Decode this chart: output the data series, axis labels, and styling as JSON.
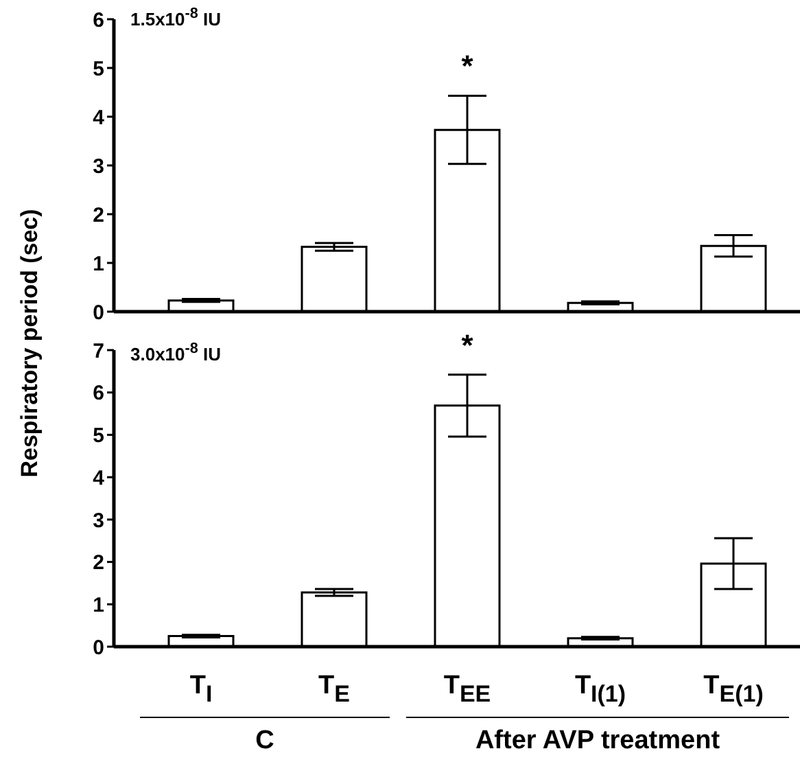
{
  "chart_data": [
    {
      "type": "bar",
      "ylabel": "Respiratory period (sec)",
      "categories": [
        null,
        null,
        null,
        null,
        null
      ],
      "series": [
        {
          "color": "#ffffff",
          "values": [
            0.23,
            1.33,
            3.73,
            0.18,
            1.35
          ],
          "errors": [
            0.03,
            0.08,
            0.7,
            0.03,
            0.22
          ]
        }
      ],
      "ylim": [
        0,
        6
      ],
      "yticks": [
        0,
        1,
        2,
        3,
        4,
        5,
        6
      ],
      "tick_labels": "y",
      "annotations": [
        "1.5x10$^{-8}$ IU",
        "*"
      ]
    },
    {
      "type": "bar",
      "categories": [
        "T$_{I}$",
        "T$_{E}$",
        "T$_{EE}$",
        "T$_{I(1)}$",
        "T$_{E(1)}$"
      ],
      "series": [
        {
          "color": "#ffffff",
          "values": [
            0.25,
            1.28,
            5.69,
            0.2,
            1.96
          ],
          "errors": [
            0.03,
            0.08,
            0.73,
            0.03,
            0.6
          ]
        }
      ],
      "ylim": [
        0,
        7
      ],
      "yticks": [
        0,
        1,
        2,
        3,
        4,
        5,
        6,
        7
      ],
      "annotations": [
        "3.0x10$^{-8}$ IU",
        "*",
        "C",
        "After AVP treatment"
      ]
    }
  ]
}
